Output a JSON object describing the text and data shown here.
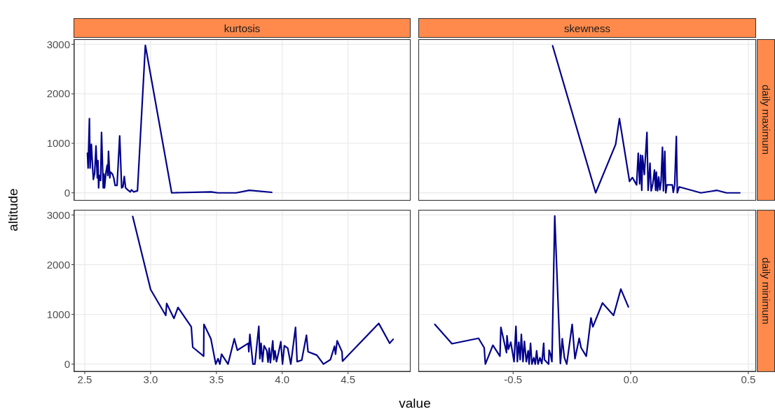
{
  "chart_data": [
    {
      "type": "line",
      "title": "kurtosis",
      "ylabel": "altitude",
      "color": "#00008b",
      "grid": true,
      "tick_labels": "y",
      "xlim": [
        2.42,
        4.97
      ],
      "xticks": [
        2.5,
        3,
        3.5,
        4,
        4.5
      ],
      "ylim": [
        -145,
        3090
      ],
      "yticks": [
        0,
        1000,
        2000,
        3000
      ],
      "x": [
        2.52,
        2.525,
        2.535,
        2.54,
        2.55,
        2.56,
        2.565,
        2.575,
        2.585,
        2.595,
        2.6,
        2.605,
        2.61,
        2.62,
        2.627,
        2.64,
        2.645,
        2.65,
        2.66,
        2.67,
        2.675,
        2.68,
        2.69,
        2.695,
        2.71,
        2.72,
        2.73,
        2.745,
        2.765,
        2.78,
        2.79,
        2.8,
        2.81,
        2.83,
        2.845,
        2.855,
        2.87,
        2.9,
        2.96,
        3.16,
        3.46,
        3.51,
        3.65,
        3.75,
        3.92
      ],
      "values": [
        800,
        500,
        1500,
        500,
        980,
        480,
        270,
        400,
        950,
        300,
        650,
        100,
        350,
        250,
        1220,
        100,
        380,
        100,
        400,
        560,
        350,
        840,
        300,
        420,
        380,
        300,
        150,
        150,
        1150,
        100,
        120,
        330,
        100,
        50,
        20,
        60,
        20,
        40,
        2980,
        0,
        20,
        0,
        0,
        50,
        10
      ]
    },
    {
      "type": "line",
      "title": "skewness",
      "y2label": "daily maximum",
      "color": "#00008b",
      "grid": true,
      "tick_labels": false,
      "xlim": [
        -0.9,
        0.53
      ],
      "xticks": [
        -0.5,
        0,
        0.5
      ],
      "ylim": [
        -145,
        3090
      ],
      "yticks": [
        0,
        1000,
        2000,
        3000
      ],
      "x": [
        -0.332,
        -0.149,
        -0.064,
        -0.048,
        -0.005,
        0.007,
        0.025,
        0.032,
        0.038,
        0.042,
        0.047,
        0.05,
        0.058,
        0.069,
        0.074,
        0.082,
        0.087,
        0.094,
        0.101,
        0.106,
        0.109,
        0.114,
        0.119,
        0.124,
        0.129,
        0.135,
        0.139,
        0.145,
        0.149,
        0.154,
        0.177,
        0.181,
        0.187,
        0.194,
        0.198,
        0.206,
        0.298,
        0.367,
        0.407,
        0.464
      ],
      "values": [
        2970,
        0,
        980,
        1500,
        230,
        310,
        160,
        800,
        180,
        760,
        50,
        750,
        370,
        1220,
        50,
        600,
        40,
        180,
        460,
        50,
        420,
        40,
        320,
        60,
        230,
        920,
        40,
        840,
        0,
        160,
        160,
        10,
        160,
        1140,
        0,
        120,
        0,
        50,
        0,
        0
      ]
    },
    {
      "type": "line",
      "xlabel": "value",
      "color": "#00008b",
      "grid": true,
      "xlim": [
        2.42,
        4.97
      ],
      "xticks": [
        {
          "value": 2.5,
          "label": "2.5"
        },
        {
          "value": 3,
          "label": "3.0"
        },
        {
          "value": 3.5,
          "label": "3.5"
        },
        {
          "value": 4,
          "label": "4.0"
        },
        {
          "value": 4.5,
          "label": "4.5"
        }
      ],
      "ylim": [
        -145,
        3090
      ],
      "yticks": [
        0,
        1000,
        2000,
        3000
      ],
      "x": [
        2.864,
        3.0,
        3.115,
        3.122,
        3.177,
        3.208,
        3.309,
        3.32,
        3.403,
        3.405,
        3.458,
        3.495,
        3.512,
        3.526,
        3.539,
        3.588,
        3.636,
        3.659,
        3.742,
        3.746,
        3.754,
        3.777,
        3.792,
        3.822,
        3.83,
        3.839,
        3.85,
        3.862,
        3.883,
        3.892,
        3.901,
        3.91,
        3.928,
        3.936,
        3.945,
        3.956,
        3.972,
        3.989,
        4.002,
        4.016,
        4.042,
        4.065,
        4.087,
        4.101,
        4.113,
        4.148,
        4.184,
        4.196,
        4.263,
        4.313,
        4.366,
        4.397,
        4.405,
        4.417,
        4.454,
        4.458,
        4.733,
        4.816,
        4.843
      ],
      "values": [
        2970,
        1500,
        980,
        1220,
        920,
        1140,
        750,
        340,
        160,
        800,
        510,
        0,
        110,
        0,
        200,
        0,
        510,
        280,
        420,
        250,
        600,
        0,
        0,
        760,
        110,
        420,
        50,
        370,
        270,
        40,
        320,
        30,
        470,
        90,
        270,
        50,
        230,
        450,
        0,
        370,
        320,
        0,
        450,
        740,
        50,
        80,
        580,
        250,
        180,
        0,
        90,
        360,
        200,
        470,
        250,
        60,
        820,
        420,
        500
      ]
    },
    {
      "type": "line",
      "y2label": "daily minimum",
      "color": "#00008b",
      "grid": true,
      "tick_labels": "x",
      "xlim": [
        -0.9,
        0.53
      ],
      "xticks": [
        {
          "value": -0.5,
          "label": "-0.5"
        },
        {
          "value": 0,
          "label": "0.0"
        },
        {
          "value": 0.5,
          "label": "0.5"
        }
      ],
      "ylim": [
        -145,
        3090
      ],
      "yticks": [
        0,
        1000,
        2000,
        3000
      ],
      "x": [
        -0.833,
        -0.76,
        -0.647,
        -0.623,
        -0.618,
        -0.586,
        -0.556,
        -0.552,
        -0.528,
        -0.526,
        -0.52,
        -0.51,
        -0.496,
        -0.488,
        -0.482,
        -0.476,
        -0.47,
        -0.465,
        -0.458,
        -0.452,
        -0.444,
        -0.436,
        -0.432,
        -0.426,
        -0.42,
        -0.412,
        -0.406,
        -0.4,
        -0.394,
        -0.386,
        -0.378,
        -0.37,
        -0.367,
        -0.349,
        -0.347,
        -0.341,
        -0.335,
        -0.323,
        -0.299,
        -0.291,
        -0.282,
        -0.272,
        -0.249,
        -0.237,
        -0.219,
        -0.211,
        -0.189,
        -0.169,
        -0.161,
        -0.12,
        -0.073,
        -0.042,
        -0.01
      ],
      "values": [
        800,
        410,
        520,
        330,
        0,
        380,
        160,
        740,
        230,
        570,
        300,
        440,
        50,
        760,
        50,
        440,
        90,
        600,
        50,
        460,
        50,
        270,
        0,
        420,
        0,
        130,
        0,
        270,
        0,
        130,
        10,
        420,
        90,
        0,
        280,
        200,
        50,
        2980,
        10,
        510,
        130,
        0,
        800,
        110,
        520,
        330,
        160,
        930,
        750,
        1230,
        980,
        1510,
        1150
      ]
    }
  ]
}
